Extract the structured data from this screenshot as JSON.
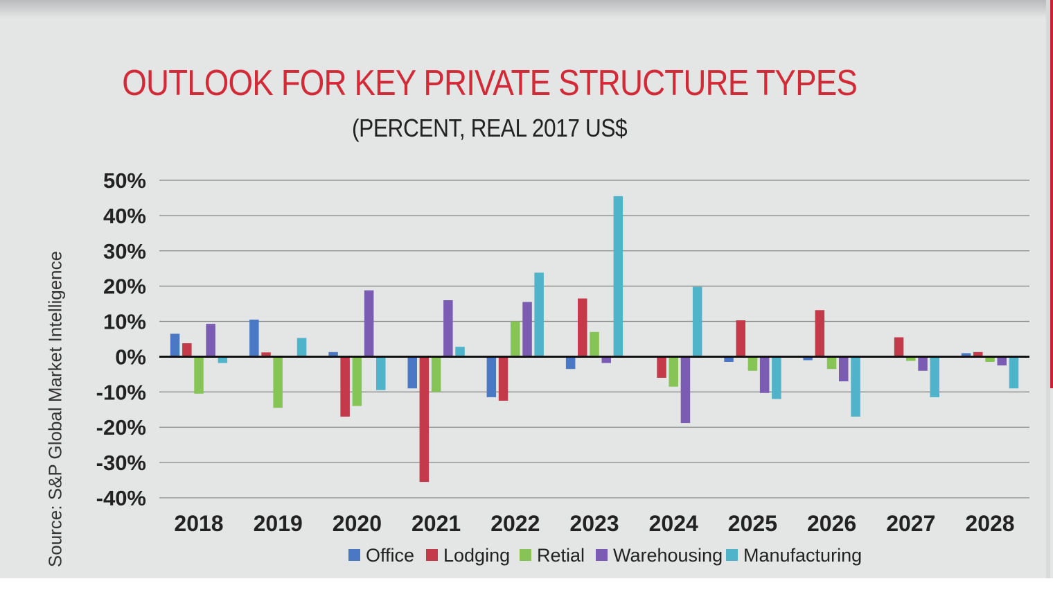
{
  "chart_data": {
    "type": "bar",
    "title": "OUTLOOK FOR KEY PRIVATE STRUCTURE TYPES",
    "subtitle": "(PERCENT, REAL 2017 US$",
    "source": "Source: S&P Global Market Intelligence",
    "xlabel": "",
    "ylabel": "",
    "ylim": [
      -40,
      50
    ],
    "yticks": [
      50,
      40,
      30,
      20,
      10,
      0,
      -10,
      -20,
      -30,
      -40
    ],
    "ytick_labels": [
      "50%",
      "40%",
      "30%",
      "20%",
      "10%",
      "0%",
      "-10%",
      "-20%",
      "-30%",
      "-40%"
    ],
    "categories": [
      "2018",
      "2019",
      "2020",
      "2021",
      "2022",
      "2023",
      "2024",
      "2025",
      "2026",
      "2027",
      "2028"
    ],
    "series": [
      {
        "name": "Office",
        "color": "#4a78c4",
        "values": [
          6.5,
          10.5,
          1.3,
          -9,
          -11.5,
          -3.5,
          0,
          -1.5,
          -1,
          0,
          1
        ]
      },
      {
        "name": "Lodging",
        "color": "#c43a4b",
        "values": [
          3.8,
          1.2,
          -17,
          -35.5,
          -12.5,
          16.5,
          -6,
          10.3,
          13.2,
          5.5,
          1.3
        ]
      },
      {
        "name": "Retial",
        "color": "#86c555",
        "values": [
          -10.5,
          -14.5,
          -14,
          -10,
          10,
          7,
          -8.5,
          -4,
          -3.5,
          -1.2,
          -1.5
        ]
      },
      {
        "name": "Warehousing",
        "color": "#7b5cb3",
        "values": [
          9.3,
          0,
          18.8,
          16,
          15.5,
          -1.8,
          -18.8,
          -10.3,
          -7,
          -4,
          -2.5
        ]
      },
      {
        "name": "Manufacturing",
        "color": "#4fb3c9",
        "values": [
          -1.8,
          5.3,
          -9.5,
          2.8,
          23.8,
          45.5,
          19.8,
          -12,
          -17,
          -11.5,
          -9
        ]
      }
    ],
    "legend_position": "bottom",
    "grid": true
  }
}
